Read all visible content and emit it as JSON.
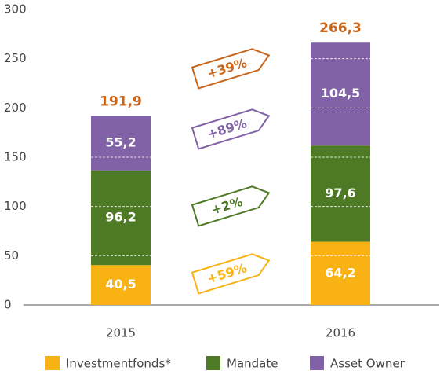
{
  "chart_data": {
    "type": "stacked-bar",
    "categories": [
      "2015",
      "2016"
    ],
    "series": [
      {
        "name": "Investmentfonds*",
        "color": "#f9b214",
        "values": [
          40.5,
          64.2
        ],
        "value_labels": [
          "40,5",
          "64,2"
        ]
      },
      {
        "name": "Mandate",
        "color": "#4e7a25",
        "values": [
          96.2,
          97.6
        ],
        "value_labels": [
          "96,2",
          "97,6"
        ]
      },
      {
        "name": "Asset Owner",
        "color": "#8162a6",
        "values": [
          55.2,
          104.5
        ],
        "value_labels": [
          "55,2",
          "104,5"
        ]
      }
    ],
    "totals": [
      191.9,
      266.3
    ],
    "total_labels": [
      "191,9",
      "266,3"
    ],
    "total_color": "#c8651b",
    "annotations": [
      {
        "text": "+39%",
        "color": "#c8651b"
      },
      {
        "text": "+89%",
        "color": "#8162a6"
      },
      {
        "text": "+2%",
        "color": "#4e7a25"
      },
      {
        "text": "+59%",
        "color": "#f9b214"
      }
    ],
    "ylim": [
      0,
      300
    ],
    "yticks": [
      0,
      50,
      100,
      150,
      200,
      250,
      300
    ],
    "grid": true
  }
}
